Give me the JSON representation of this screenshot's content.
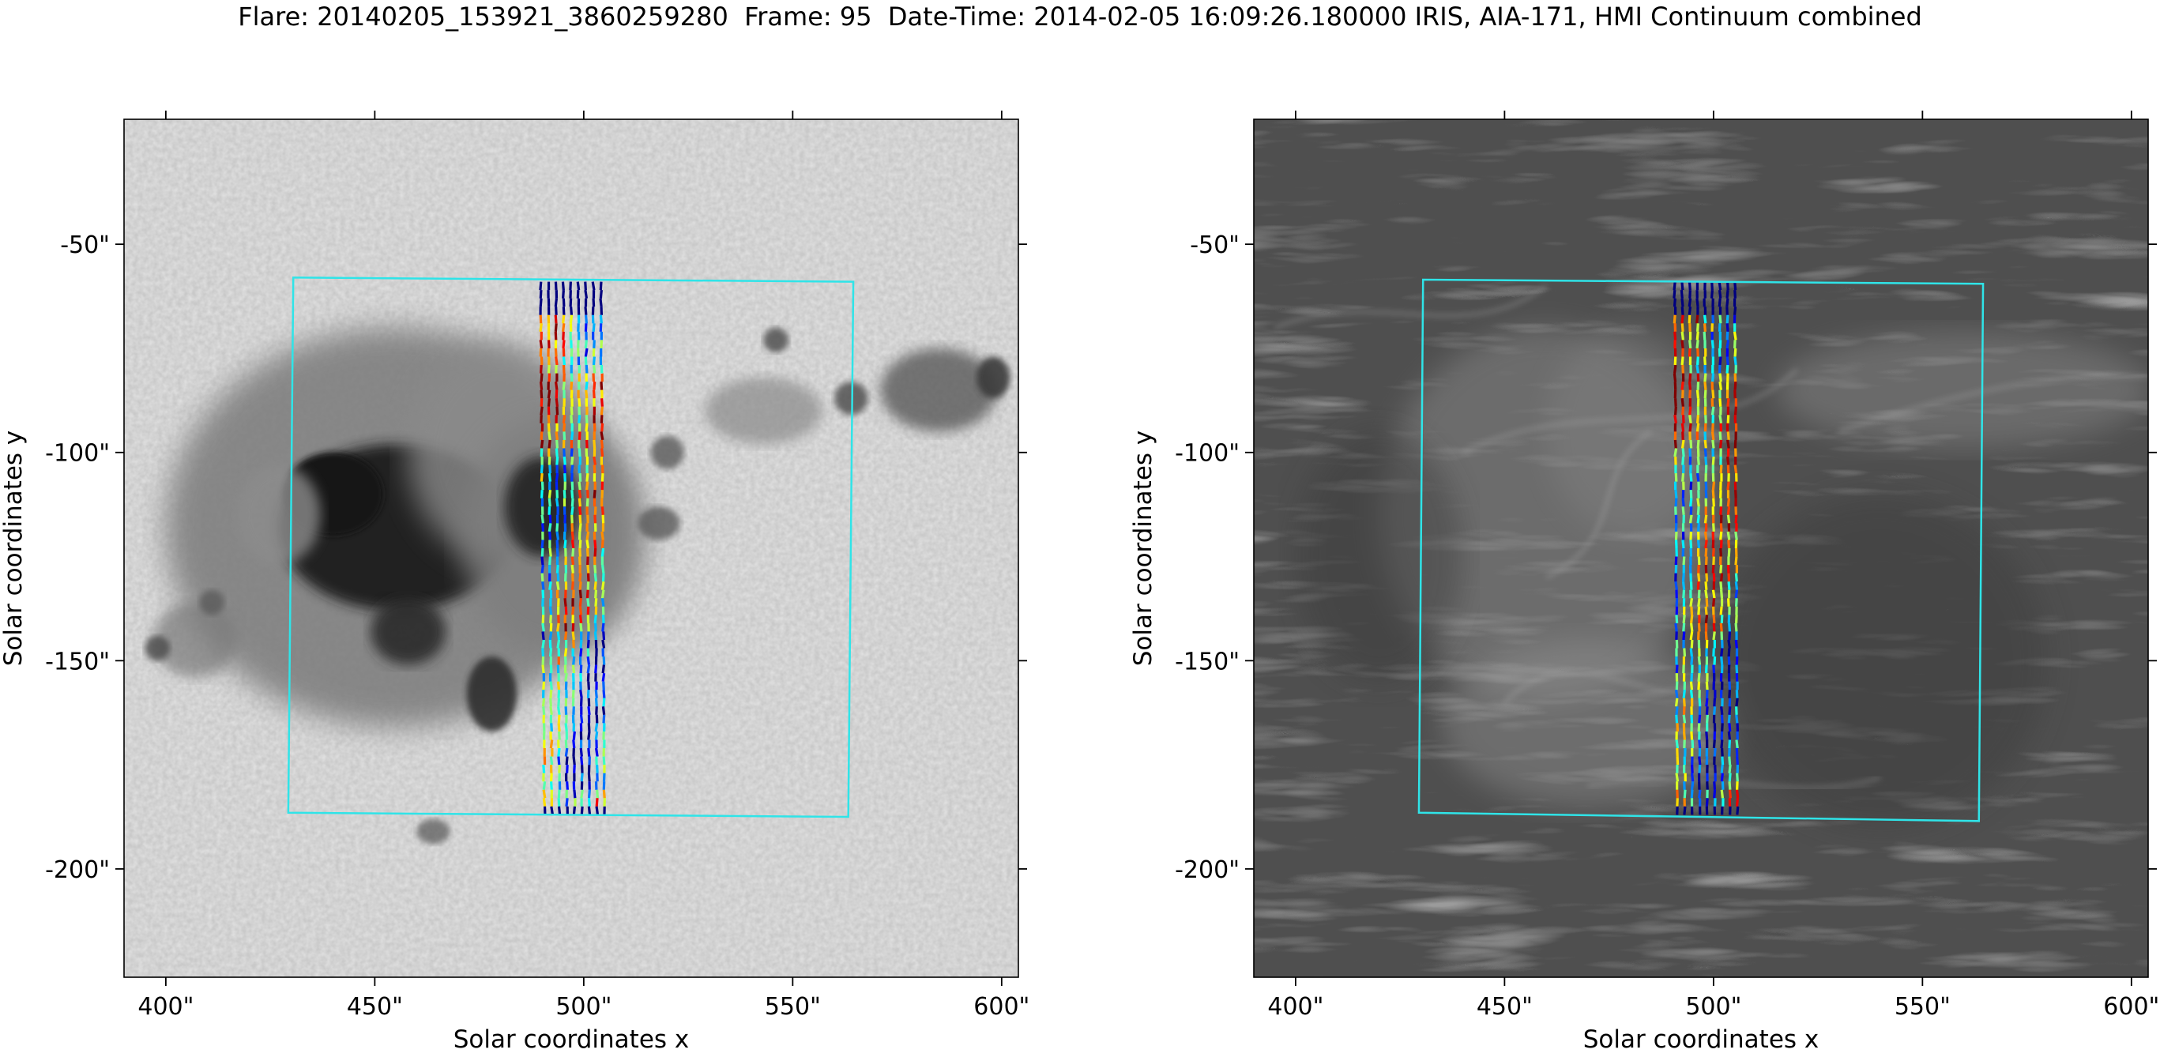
{
  "title": "Flare: 20140205_153921_3860259280  Frame: 95  Date-Time: 2014-02-05 16:09:26.180000 IRIS, AIA-171, HMI Continuum combined",
  "chart_data": [
    {
      "type": "image",
      "image_kind": "HMI Continuum",
      "xlabel": "Solar coordinates x",
      "ylabel": "Solar coordinates y",
      "xlim": [
        390,
        604
      ],
      "ylim": [
        -226,
        -20
      ],
      "xticks": [
        400,
        450,
        500,
        550,
        600
      ],
      "xtick_labels": [
        "400\"",
        "450\"",
        "500\"",
        "550\"",
        "600\""
      ],
      "yticks": [
        -50,
        -100,
        -150,
        -200
      ],
      "ytick_labels": [
        "-50\"",
        "-100\"",
        "-150\"",
        "-200\""
      ],
      "fov_box": [
        [
          430.5,
          -58
        ],
        [
          564.5,
          -59
        ],
        [
          563.3,
          -187.5
        ],
        [
          429.3,
          -186.5
        ]
      ],
      "slit_x_start": 489.7,
      "slit_x_step": 1.8,
      "slit_count": 9,
      "slit_y_range": [
        -59,
        -187
      ],
      "slit_tilt": -0.007,
      "colors": {
        "box": "#2fe4e8",
        "background": "#c6c6c6"
      }
    },
    {
      "type": "image",
      "image_kind": "AIA-171",
      "xlabel": "Solar coordinates x",
      "ylabel": "Solar coordinates y",
      "xlim": [
        390,
        604
      ],
      "ylim": [
        -226,
        -20
      ],
      "xticks": [
        400,
        450,
        500,
        550,
        600
      ],
      "xtick_labels": [
        "400\"",
        "450\"",
        "500\"",
        "550\"",
        "600\""
      ],
      "yticks": [
        -50,
        -100,
        -150,
        -200
      ],
      "ytick_labels": [
        "-50\"",
        "-100\"",
        "-150\"",
        "-200\""
      ],
      "fov_box": [
        [
          430.5,
          -58.5
        ],
        [
          564.5,
          -59.5
        ],
        [
          563.5,
          -188.5
        ],
        [
          429.5,
          -186.5
        ]
      ],
      "slit_x_start": 490.7,
      "slit_x_step": 1.8,
      "slit_count": 9,
      "slit_y_range": [
        -59,
        -187
      ],
      "slit_tilt": -0.005,
      "colors": {
        "box": "#2fe4e8",
        "background": "#4d4d4d"
      }
    }
  ]
}
